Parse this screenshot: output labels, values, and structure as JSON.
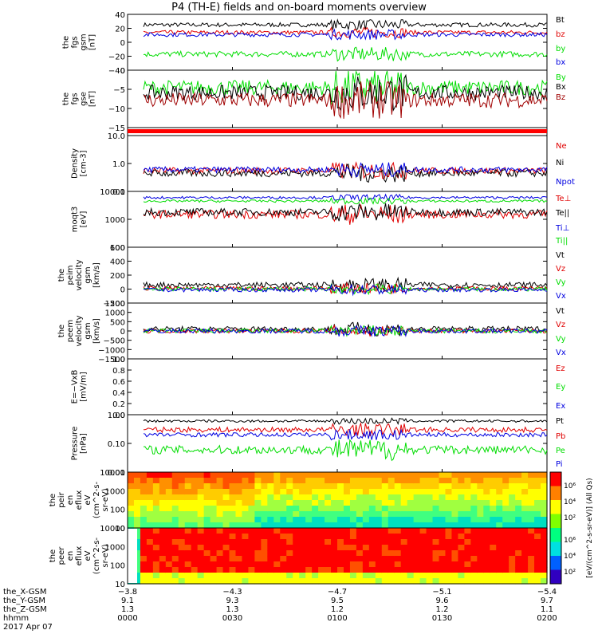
{
  "title": "P4 (TH-E) fields and on-board moments overview",
  "colors": {
    "black": "#000000",
    "red": "#e00000",
    "blue": "#0000e0",
    "green": "#00dd00",
    "darkred": "#a00000"
  },
  "chart_data": [
    {
      "type": "line",
      "id": "fgs_gsm",
      "ylabel": [
        "the",
        "fgs",
        "gsm",
        "[nT]"
      ],
      "ylim": [
        -40,
        40
      ],
      "yticks": [
        "40",
        "20",
        "0",
        "−20",
        "−40"
      ],
      "series": [
        {
          "name": "Bt",
          "color": "black",
          "level": 25,
          "amp": 3
        },
        {
          "name": "bz",
          "color": "red",
          "level": 14,
          "amp": 3
        },
        {
          "name": "by",
          "color": "green",
          "level": -17,
          "amp": 4
        },
        {
          "name": "bx",
          "color": "blue",
          "level": 11,
          "amp": 3
        }
      ]
    },
    {
      "type": "line",
      "id": "fgs_gse",
      "ylabel": [
        "the",
        "fgs",
        "gse",
        "[nT]"
      ],
      "ylim": [
        -18,
        5
      ],
      "yticks": [
        "0",
        "−5",
        "−10",
        "−15"
      ],
      "series": [
        {
          "name": "By",
          "color": "green",
          "level": -2,
          "amp": 3
        },
        {
          "name": "Bx",
          "color": "black",
          "level": -4,
          "amp": 3
        },
        {
          "name": "Bz",
          "color": "darkred",
          "level": -7,
          "amp": 3
        }
      ]
    },
    {
      "type": "flag",
      "id": "flag"
    },
    {
      "type": "line",
      "id": "density",
      "ylabel": [
        "Density",
        "[cm-3]"
      ],
      "ylim": [
        0.1,
        10
      ],
      "log": true,
      "yticks": [
        "10.0",
        "1.0",
        "0.1"
      ],
      "series": [
        {
          "name": "Ne",
          "color": "red",
          "level": 0.55,
          "amp": 0.4
        },
        {
          "name": "Ni",
          "color": "black",
          "level": 0.45,
          "amp": 0.45
        },
        {
          "name": "Npot",
          "color": "blue",
          "level": 0.6,
          "amp": 0.35
        }
      ]
    },
    {
      "type": "line",
      "id": "temp",
      "ylabel": [
        "moqt3",
        "[eV]"
      ],
      "ylim": [
        100,
        10000
      ],
      "log": true,
      "yticks": [
        "10000",
        "1000",
        "100"
      ],
      "series": [
        {
          "name": "Te⊥",
          "color": "red",
          "level": 1500,
          "amp": 0.5
        },
        {
          "name": "Te||",
          "color": "black",
          "level": 1800,
          "amp": 0.45
        },
        {
          "name": "Ti⊥",
          "color": "blue",
          "level": 6000,
          "amp": 0.15
        },
        {
          "name": "Ti||",
          "color": "green",
          "level": 4500,
          "amp": 0.15
        }
      ]
    },
    {
      "type": "line",
      "id": "peim_v",
      "ylabel": [
        "the",
        "peim",
        "velocity",
        "gsm",
        "[km/s]"
      ],
      "ylim": [
        -200,
        600
      ],
      "yticks": [
        "600",
        "400",
        "200",
        "0",
        "−200"
      ],
      "series": [
        {
          "name": "Vt",
          "color": "black",
          "level": 60,
          "amp": 40
        },
        {
          "name": "Vz",
          "color": "red",
          "level": 10,
          "amp": 30
        },
        {
          "name": "Vy",
          "color": "green",
          "level": 0,
          "amp": 30
        },
        {
          "name": "Vx",
          "color": "blue",
          "level": -10,
          "amp": 30
        }
      ]
    },
    {
      "type": "line",
      "id": "peem_v",
      "ylabel": [
        "the",
        "peem",
        "velocity",
        "gsm",
        "[km/s]"
      ],
      "ylim": [
        -1500,
        1500
      ],
      "yticks": [
        "1500",
        "1000",
        "500",
        "0",
        "−500",
        "−1000",
        "−1500"
      ],
      "series": [
        {
          "name": "Vt",
          "color": "black",
          "level": 100,
          "amp": 150
        },
        {
          "name": "Vz",
          "color": "red",
          "level": 0,
          "amp": 120
        },
        {
          "name": "Vy",
          "color": "green",
          "level": 0,
          "amp": 120
        },
        {
          "name": "Vx",
          "color": "blue",
          "level": 0,
          "amp": 120
        }
      ]
    },
    {
      "type": "line",
      "id": "efield",
      "ylabel": [
        "E=−VxB",
        "[mV/m]"
      ],
      "ylim": [
        0,
        1
      ],
      "yticks": [
        "1.0",
        "0.8",
        "0.6",
        "0.4",
        "0.2",
        "0.0"
      ],
      "series": [
        {
          "name": "Ez",
          "color": "red",
          "level": null,
          "amp": 0
        },
        {
          "name": "Ey",
          "color": "green",
          "level": null,
          "amp": 0
        },
        {
          "name": "Ex",
          "color": "blue",
          "level": null,
          "amp": 0
        }
      ]
    },
    {
      "type": "line",
      "id": "pressure",
      "ylabel": [
        "Pressure",
        "[nPa]"
      ],
      "ylim": [
        0.01,
        1
      ],
      "log": true,
      "yticks": [
        "1.00",
        "0.10",
        "0.01"
      ],
      "series": [
        {
          "name": "Pt",
          "color": "black",
          "level": 0.6,
          "amp": 0.15
        },
        {
          "name": "Pb",
          "color": "red",
          "level": 0.3,
          "amp": 0.3
        },
        {
          "name": "Pe",
          "color": "green",
          "level": 0.06,
          "amp": 0.5
        },
        {
          "name": "Pi",
          "color": "blue",
          "level": 0.2,
          "amp": 0.25
        }
      ]
    },
    {
      "type": "heatmap",
      "id": "peir_en",
      "ylabel": [
        "the",
        "peir",
        "en",
        "eflux",
        "eV",
        "(cm^2-s-",
        "sr-eV)"
      ],
      "yticks": [
        "10000",
        "1000",
        "100",
        "10"
      ]
    },
    {
      "type": "heatmap",
      "id": "peer_en",
      "ylabel": [
        "the",
        "peer",
        "en",
        "eflux",
        "eV",
        "(cm^2-s-",
        "sr-eV)"
      ],
      "yticks": [
        "10000",
        "1000",
        "100",
        "10"
      ]
    }
  ],
  "colorbar": {
    "label": "[eV/(cm^2-s-sr-eV)] (All Qs)",
    "ticks": [
      "10⁶",
      "10⁴",
      "10²"
    ]
  },
  "x_axis": {
    "rows": [
      {
        "label": "the_X-GSM",
        "values": [
          "−3.8",
          "−4.3",
          "−4.7",
          "−5.1",
          "−5.4"
        ]
      },
      {
        "label": "the_Y-GSM",
        "values": [
          "9.1",
          "9.3",
          "9.5",
          "9.6",
          "9.7"
        ]
      },
      {
        "label": "the_Z-GSM",
        "values": [
          "1.3",
          "1.3",
          "1.2",
          "1.2",
          "1.1"
        ]
      },
      {
        "label": "hhmm",
        "values": [
          "0000",
          "0030",
          "0100",
          "0130",
          "0200"
        ]
      }
    ],
    "date": "2017 Apr 07"
  }
}
